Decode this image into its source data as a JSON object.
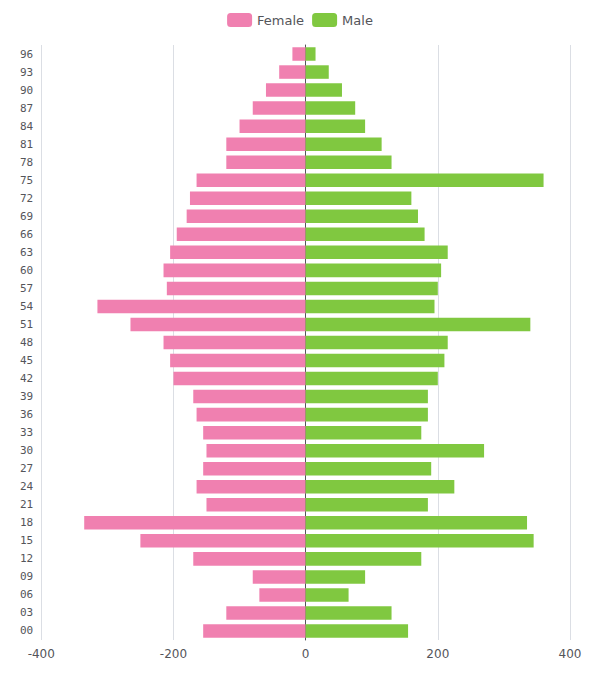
{
  "chart_data": {
    "type": "bar",
    "orientation": "horizontal",
    "categories": [
      "00",
      "03",
      "06",
      "09",
      "12",
      "15",
      "18",
      "21",
      "24",
      "27",
      "30",
      "33",
      "36",
      "39",
      "42",
      "45",
      "48",
      "51",
      "54",
      "57",
      "60",
      "63",
      "66",
      "69",
      "72",
      "75",
      "78",
      "81",
      "84",
      "87",
      "90",
      "93",
      "96"
    ],
    "series": [
      {
        "name": "Female",
        "color": "#f080b0",
        "values": [
          -155,
          -120,
          -70,
          -80,
          -170,
          -250,
          -335,
          -150,
          -165,
          -155,
          -150,
          -155,
          -165,
          -170,
          -200,
          -205,
          -215,
          -265,
          -315,
          -210,
          -215,
          -205,
          -195,
          -180,
          -175,
          -165,
          -120,
          -120,
          -100,
          -80,
          -60,
          -40,
          -20
        ]
      },
      {
        "name": "Male",
        "color": "#80c840",
        "values": [
          155,
          130,
          65,
          90,
          175,
          345,
          335,
          185,
          225,
          190,
          270,
          175,
          185,
          185,
          200,
          210,
          215,
          340,
          195,
          200,
          205,
          215,
          180,
          170,
          160,
          360,
          130,
          115,
          90,
          75,
          55,
          35,
          15
        ]
      }
    ],
    "xlim": [
      -400,
      400
    ],
    "xticks": [
      -400,
      -200,
      0,
      200,
      400
    ],
    "grid": true,
    "legend": "upper center"
  }
}
